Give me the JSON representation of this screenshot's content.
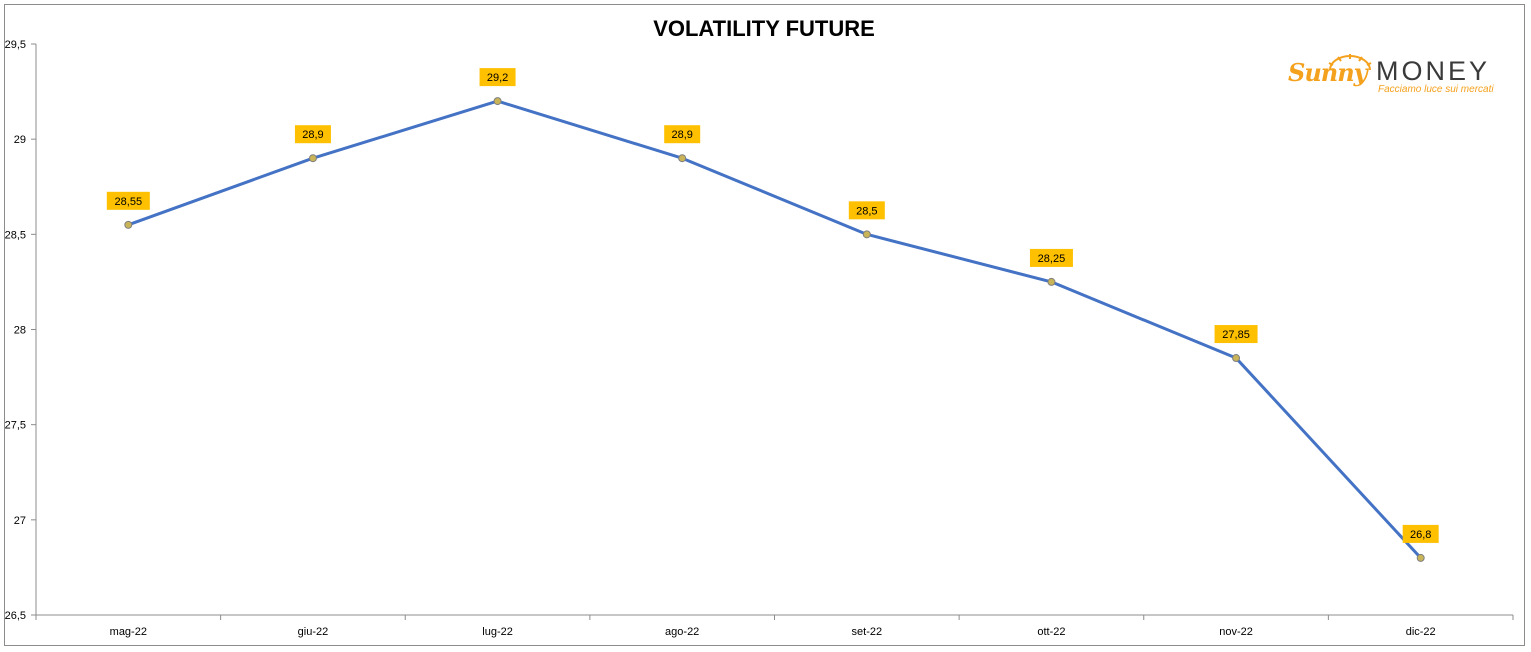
{
  "chart_data": {
    "type": "line",
    "title": "VOLATILITY FUTURE",
    "categories": [
      "mag-22",
      "giu-22",
      "lug-22",
      "ago-22",
      "set-22",
      "ott-22",
      "nov-22",
      "dic-22"
    ],
    "series": [
      {
        "values": [
          28.55,
          28.9,
          29.2,
          28.9,
          28.5,
          28.25,
          27.85,
          26.8
        ],
        "labels": [
          "28,55",
          "28,9",
          "29,2",
          "28,9",
          "28,5",
          "28,25",
          "27,85",
          "26,8"
        ]
      }
    ],
    "ylim": [
      26.5,
      29.5
    ],
    "yticks": [
      26.5,
      27,
      27.5,
      28,
      28.5,
      29,
      29.5
    ],
    "ytick_labels": [
      "26,5",
      "27",
      "27,5",
      "28",
      "28,5",
      "29",
      "29,5"
    ],
    "grid": false,
    "legend": "none",
    "colors": {
      "line": "#4472c4",
      "marker_fill": "#c9b458",
      "label_bg": "#ffc000",
      "axis": "#8c8c8c"
    }
  },
  "logo": {
    "brand_part1": "Sunny",
    "brand_part2": "MONEY",
    "tagline": "Facciamo luce sui mercati"
  }
}
